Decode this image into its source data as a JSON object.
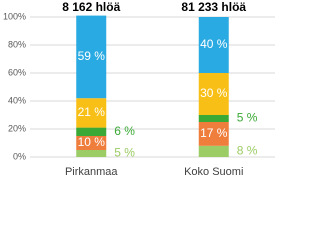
{
  "chart_data": {
    "type": "stacked_bar",
    "categories": [
      "Pirkanmaa",
      "Koko Suomi"
    ],
    "bar_totals": [
      "8 162 hlöä",
      "81 233 hlöä"
    ],
    "series": [
      {
        "color": "#9ccc65",
        "values": [
          5,
          8
        ],
        "value_labels": [
          "5 %",
          "8 %"
        ],
        "label_inside": false,
        "label_color": "#9ccc65"
      },
      {
        "color": "#ef7d3c",
        "values": [
          10,
          17
        ],
        "value_labels": [
          "10 %",
          "17 %"
        ],
        "label_inside": true,
        "label_color": "#ffffff"
      },
      {
        "color": "#3aa935",
        "values": [
          6,
          5
        ],
        "value_labels": [
          "6 %",
          "5 %"
        ],
        "label_inside": false,
        "label_color": "#3aa935"
      },
      {
        "color": "#f8bf16",
        "values": [
          21,
          30
        ],
        "value_labels": [
          "21 %",
          "30 %"
        ],
        "label_inside": true,
        "label_color": "#ffffff"
      },
      {
        "color": "#2aaae2",
        "values": [
          59,
          40
        ],
        "value_labels": [
          "59 %",
          "40 %"
        ],
        "label_inside": true,
        "label_color": "#ffffff"
      }
    ],
    "ylim": [
      0,
      100
    ],
    "yticks": [
      {
        "value": 0,
        "label": "0%"
      },
      {
        "value": 20,
        "label": "20%"
      },
      {
        "value": 40,
        "label": "40%"
      },
      {
        "value": 60,
        "label": "60%"
      },
      {
        "value": 80,
        "label": "80%"
      },
      {
        "value": 100,
        "label": "100%"
      }
    ],
    "grid": true
  }
}
